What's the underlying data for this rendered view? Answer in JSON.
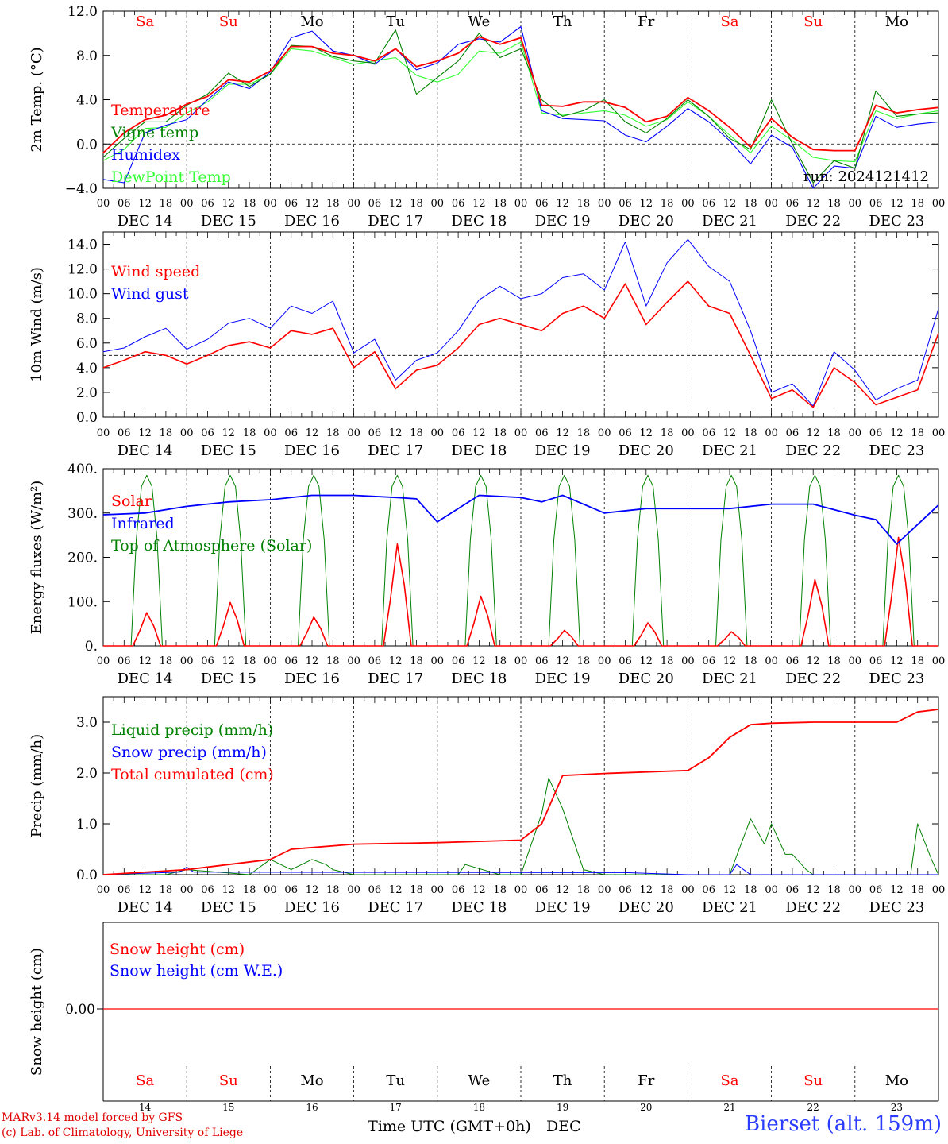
{
  "credits": {
    "line1": "MARv3.14 model forced by GFS",
    "line2": "(c) Lab. of Climatology, University of Liege"
  },
  "site": "Bierset (alt. 159m)",
  "run_label": "run: 2024121412",
  "xaxis_label": "Time UTC (GMT+0h)",
  "month_label": "DEC",
  "colors": {
    "red": "#ff0000",
    "green": "#008000",
    "blue": "#0000ff",
    "lightgreen": "#33ff33",
    "weekend": "#ff0000",
    "weekday": "#000000"
  },
  "chart_data": [
    {
      "type": "line",
      "id": "temperature",
      "ylabel": "2m Temp. (°C)",
      "ylim": [
        -4,
        12
      ],
      "yticks": [
        -4,
        0,
        4,
        8,
        12
      ],
      "ytick_labels": [
        "−4.0",
        "0.0",
        "4.0",
        "8.0",
        "12.0"
      ],
      "ref_line": 0,
      "day_names": [
        "Sa",
        "Su",
        "Mo",
        "Tu",
        "We",
        "Th",
        "Fr",
        "Sa",
        "Su",
        "Mo"
      ],
      "date_labels": [
        "DEC 14",
        "DEC 15",
        "DEC 16",
        "DEC 17",
        "DEC 18",
        "DEC 19",
        "DEC 20",
        "DEC 21",
        "DEC 22",
        "DEC 23"
      ],
      "hour_ticks": [
        "00",
        "06",
        "12",
        "18"
      ],
      "x_hours": [
        0,
        6,
        12,
        18,
        24,
        30,
        36,
        42,
        48,
        54,
        60,
        66,
        72,
        78,
        84,
        90,
        96,
        102,
        108,
        114,
        120,
        126,
        132,
        138,
        144,
        150,
        156,
        162,
        168,
        174,
        180,
        186,
        192,
        198,
        204,
        210,
        216,
        222,
        228,
        234,
        240
      ],
      "series": [
        {
          "name": "Temperature",
          "color": "#ff0000",
          "values": [
            -0.8,
            1.0,
            2.2,
            2.6,
            3.6,
            4.3,
            5.8,
            5.6,
            6.6,
            8.8,
            8.8,
            8.2,
            8.0,
            7.5,
            8.6,
            7.0,
            7.5,
            8.2,
            9.7,
            9.0,
            9.6,
            3.5,
            3.4,
            3.8,
            3.8,
            3.3,
            2.0,
            2.5,
            4.2,
            3.0,
            1.5,
            -0.3,
            2.3,
            0.6,
            -0.5,
            -0.6,
            -0.6,
            3.5,
            2.8,
            3.1,
            3.3
          ]
        },
        {
          "name": "Vigne temp",
          "color": "#008000",
          "values": [
            -1.2,
            0.5,
            2.0,
            2.0,
            3.5,
            4.5,
            6.4,
            5.2,
            6.3,
            8.9,
            8.8,
            7.9,
            7.5,
            7.3,
            10.3,
            4.5,
            6.0,
            7.5,
            10.0,
            7.8,
            8.6,
            4.0,
            2.5,
            3.0,
            4.0,
            2.0,
            1.0,
            2.3,
            4.0,
            2.5,
            0.5,
            -0.5,
            4.0,
            0.0,
            -3.5,
            -1.5,
            -2.2,
            4.8,
            2.5,
            2.7,
            2.8
          ]
        },
        {
          "name": "Humidex",
          "color": "#0000ff",
          "values": [
            -3.2,
            -3.5,
            1.0,
            1.7,
            2.2,
            4.0,
            5.6,
            5.0,
            6.5,
            9.6,
            10.2,
            8.4,
            8.0,
            7.2,
            8.6,
            6.7,
            7.3,
            9.0,
            9.5,
            9.2,
            10.6,
            3.0,
            2.3,
            2.2,
            2.1,
            0.8,
            0.2,
            1.6,
            3.2,
            2.0,
            0.3,
            -1.8,
            0.8,
            -0.3,
            -4.0,
            -2.0,
            -2.2,
            2.5,
            1.5,
            1.8,
            2.0
          ]
        },
        {
          "name": "DewPoint Temp",
          "color": "#33ff33",
          "values": [
            -1.5,
            -0.5,
            1.4,
            1.5,
            2.8,
            3.8,
            5.4,
            5.4,
            6.3,
            8.6,
            8.4,
            7.8,
            7.2,
            7.5,
            7.8,
            6.2,
            5.6,
            6.3,
            8.4,
            8.2,
            9.2,
            2.8,
            2.6,
            2.8,
            3.0,
            2.6,
            1.6,
            2.2,
            3.8,
            2.5,
            0.8,
            -0.8,
            1.6,
            0.3,
            -1.2,
            -1.5,
            -1.6,
            3.0,
            2.3,
            2.7,
            3.0
          ]
        }
      ]
    },
    {
      "type": "line",
      "id": "wind",
      "ylabel": "10m Wind (m/s)",
      "ylim": [
        0,
        15
      ],
      "yticks": [
        0,
        2,
        4,
        6,
        8,
        10,
        12,
        14
      ],
      "ytick_labels": [
        "0.0",
        "2.0",
        "4.0",
        "6.0",
        "8.0",
        "10.0",
        "12.0",
        "14.0"
      ],
      "ref_line": 5,
      "date_labels": [
        "DEC 14",
        "DEC 15",
        "DEC 16",
        "DEC 17",
        "DEC 18",
        "DEC 19",
        "DEC 20",
        "DEC 21",
        "DEC 22",
        "DEC 23"
      ],
      "hour_ticks": [
        "00",
        "06",
        "12",
        "18"
      ],
      "x_hours": [
        0,
        6,
        12,
        18,
        24,
        30,
        36,
        42,
        48,
        54,
        60,
        66,
        72,
        78,
        84,
        90,
        96,
        102,
        108,
        114,
        120,
        126,
        132,
        138,
        144,
        150,
        156,
        162,
        168,
        174,
        180,
        186,
        192,
        198,
        204,
        210,
        216,
        222,
        228,
        234,
        240
      ],
      "series": [
        {
          "name": "Wind speed",
          "color": "#ff0000",
          "values": [
            4.0,
            4.6,
            5.3,
            5.0,
            4.3,
            5.0,
            5.8,
            6.1,
            5.6,
            7.0,
            6.7,
            7.2,
            4.0,
            5.3,
            2.3,
            3.8,
            4.2,
            5.6,
            7.5,
            8.0,
            7.5,
            7.0,
            8.4,
            9.0,
            8.0,
            10.8,
            7.5,
            9.3,
            11.0,
            9.0,
            8.4,
            5.0,
            1.5,
            2.2,
            0.8,
            4.0,
            2.8,
            1.0,
            1.6,
            2.2,
            6.8
          ]
        },
        {
          "name": "Wind gust",
          "color": "#0000ff",
          "values": [
            5.3,
            5.6,
            6.5,
            7.2,
            5.5,
            6.3,
            7.6,
            8.0,
            7.2,
            9.0,
            8.4,
            9.4,
            5.2,
            6.3,
            3.0,
            4.6,
            5.2,
            7.0,
            9.5,
            10.6,
            9.6,
            10.0,
            11.3,
            11.6,
            10.3,
            14.2,
            9.0,
            12.5,
            14.4,
            12.2,
            11.0,
            7.0,
            2.0,
            2.7,
            0.9,
            5.3,
            3.8,
            1.4,
            2.3,
            3.0,
            8.8
          ]
        }
      ]
    },
    {
      "type": "line",
      "id": "energy",
      "ylabel": "Energy fluxes (W/m²)",
      "ylim": [
        0,
        400
      ],
      "yticks": [
        0,
        100,
        200,
        300,
        400
      ],
      "ytick_labels": [
        "0.",
        "100.",
        "200.",
        "300.",
        "400."
      ],
      "date_labels": [
        "DEC 14",
        "DEC 15",
        "DEC 16",
        "DEC 17",
        "DEC 18",
        "DEC 19",
        "DEC 20",
        "DEC 21",
        "DEC 22",
        "DEC 23"
      ],
      "hour_ticks": [
        "00",
        "06",
        "12",
        "18"
      ],
      "daily_solar_peaks": [
        75,
        98,
        65,
        230,
        112,
        35,
        52,
        32,
        150,
        245
      ],
      "toa_peak": 385,
      "series": [
        {
          "name": "Solar",
          "color": "#ff0000"
        },
        {
          "name": "Infrared",
          "color": "#0000ff",
          "x_hours": [
            0,
            12,
            24,
            36,
            48,
            60,
            72,
            84,
            90,
            96,
            108,
            120,
            126,
            132,
            144,
            156,
            168,
            180,
            192,
            204,
            216,
            222,
            228,
            240
          ],
          "values": [
            296,
            300,
            315,
            325,
            330,
            340,
            340,
            335,
            332,
            280,
            340,
            335,
            325,
            340,
            300,
            310,
            310,
            310,
            320,
            320,
            295,
            285,
            230,
            318
          ]
        },
        {
          "name": "Top of Atmosphere (Solar)",
          "color": "#008000"
        }
      ]
    },
    {
      "type": "line",
      "id": "precip",
      "ylabel": "Precip (mm/h)",
      "ylim": [
        0,
        3.5
      ],
      "yticks": [
        0,
        1,
        2,
        3
      ],
      "ytick_labels": [
        "0.0",
        "1.0",
        "2.0",
        "3.0"
      ],
      "date_labels": [
        "DEC 14",
        "DEC 15",
        "DEC 16",
        "DEC 17",
        "DEC 18",
        "DEC 19",
        "DEC 20",
        "DEC 21",
        "DEC 22",
        "DEC 23"
      ],
      "hour_ticks": [
        "00",
        "06",
        "12",
        "18"
      ],
      "series": [
        {
          "name": "Liquid precip (mm/h)",
          "color": "#008000",
          "x_hours": [
            0,
            18,
            24,
            42,
            48,
            54,
            60,
            64,
            66,
            72,
            102,
            104,
            114,
            118,
            120,
            126,
            128,
            132,
            138,
            144,
            150,
            156,
            168,
            180,
            186,
            190,
            192,
            196,
            198,
            202,
            204,
            210,
            232,
            234,
            238,
            240
          ],
          "values": [
            0,
            0,
            0.1,
            0,
            0.3,
            0.1,
            0.3,
            0.2,
            0.1,
            0,
            0,
            0.2,
            0,
            0,
            0,
            1.2,
            1.9,
            1.3,
            0.1,
            0,
            0,
            0,
            0,
            0,
            1.1,
            0.6,
            1.0,
            0.4,
            0.4,
            0.1,
            0,
            0,
            0,
            1.0,
            0.3,
            0
          ]
        },
        {
          "name": "Snow precip (mm/h)",
          "color": "#0000ff",
          "x_hours": [
            0,
            22,
            24,
            26,
            150,
            168,
            180,
            182,
            186,
            240
          ],
          "values": [
            0,
            0.05,
            0.15,
            0.05,
            0.04,
            0,
            0,
            0.2,
            0,
            0
          ]
        },
        {
          "name": "Total cumulated (cm)",
          "color": "#ff0000",
          "x_hours": [
            0,
            24,
            36,
            48,
            54,
            72,
            96,
            120,
            126,
            132,
            144,
            168,
            174,
            180,
            186,
            192,
            204,
            216,
            228,
            234,
            240
          ],
          "values": [
            0,
            0.1,
            0.2,
            0.3,
            0.5,
            0.6,
            0.63,
            0.68,
            1.0,
            1.95,
            1.99,
            2.05,
            2.3,
            2.7,
            2.95,
            2.98,
            3.0,
            3.0,
            3.0,
            3.2,
            3.25
          ]
        }
      ]
    },
    {
      "type": "line",
      "id": "snow",
      "ylabel": "Snow height (cm)",
      "yticks": [
        0
      ],
      "ytick_labels": [
        "0.00"
      ],
      "day_names": [
        "Sa",
        "Su",
        "Mo",
        "Tu",
        "We",
        "Th",
        "Fr",
        "Sa",
        "Su",
        "Mo"
      ],
      "day_numbers": [
        "14",
        "15",
        "16",
        "17",
        "18",
        "19",
        "20",
        "21",
        "22",
        "23"
      ],
      "series": [
        {
          "name": "Snow height (cm)",
          "color": "#ff0000",
          "values": [
            0,
            0
          ]
        },
        {
          "name": "Snow height (cm W.E.)",
          "color": "#0000ff"
        }
      ]
    }
  ]
}
